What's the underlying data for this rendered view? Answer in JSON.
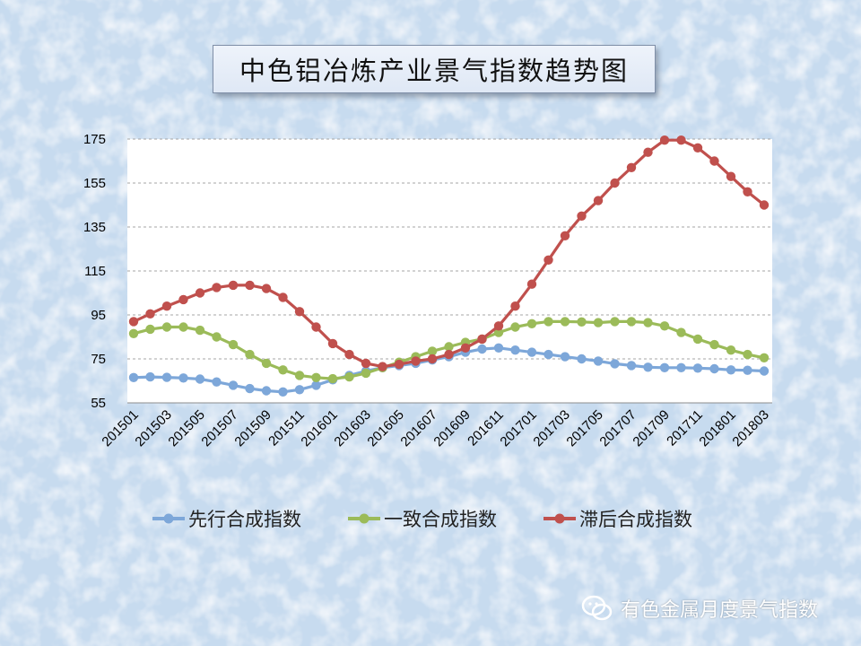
{
  "header": {
    "title": "中色铝冶炼产业景气指数趋势图"
  },
  "watermark": {
    "text": "有色金属月度景气指数",
    "icon": "wechat-icon"
  },
  "colors": {
    "leading": "#7da7d9",
    "coincident": "#9bbb59",
    "lagging": "#c0504d",
    "grid": "#a6a6a6"
  },
  "chart_data": {
    "type": "line",
    "title": "中色铝冶炼产业景气指数趋势图",
    "xlabel": "",
    "ylabel": "",
    "ylim": [
      55,
      175
    ],
    "yticks": [
      55,
      75,
      95,
      115,
      135,
      155,
      175
    ],
    "grid": "horizontal-dashed",
    "legend_position": "bottom",
    "x": [
      "201501",
      "201502",
      "201503",
      "201504",
      "201505",
      "201506",
      "201507",
      "201508",
      "201509",
      "201510",
      "201511",
      "201512",
      "201601",
      "201602",
      "201603",
      "201604",
      "201605",
      "201606",
      "201607",
      "201608",
      "201609",
      "201610",
      "201611",
      "201612",
      "201701",
      "201702",
      "201703",
      "201704",
      "201705",
      "201706",
      "201707",
      "201708",
      "201709",
      "201710",
      "201711",
      "201712",
      "201801",
      "201802",
      "201803"
    ],
    "xtick_labels": [
      "201501",
      "201503",
      "201505",
      "201507",
      "201509",
      "201511",
      "201601",
      "201603",
      "201605",
      "201607",
      "201609",
      "201611",
      "201701",
      "201703",
      "201705",
      "201707",
      "201709",
      "201711",
      "201801",
      "201803"
    ],
    "series": [
      {
        "name": "先行合成指数",
        "color": "#7da7d9",
        "values": [
          66.5,
          66.8,
          66.6,
          66.3,
          65.8,
          64.5,
          63,
          61.5,
          60.5,
          60,
          61,
          63,
          65.5,
          67.5,
          69.5,
          71,
          72,
          73,
          74.5,
          76,
          78,
          79.5,
          80,
          79,
          78,
          77,
          76,
          75,
          74,
          72.8,
          72,
          71.2,
          71,
          71,
          70.8,
          70.5,
          70,
          69.8,
          69.5
        ]
      },
      {
        "name": "一致合成指数",
        "color": "#9bbb59",
        "values": [
          86.5,
          88.5,
          89.5,
          89.5,
          88,
          85,
          81.5,
          77,
          73,
          70,
          67.5,
          66.5,
          66,
          66.8,
          68.5,
          71,
          73.5,
          76,
          78.5,
          80.5,
          82.5,
          84,
          87,
          89.5,
          91,
          92,
          92,
          91.8,
          91.5,
          92,
          92,
          91.5,
          90,
          87,
          84,
          81.5,
          79,
          77,
          75.5
        ]
      },
      {
        "name": "滞后合成指数",
        "color": "#c0504d",
        "values": [
          92,
          95.5,
          99,
          102,
          105,
          107.5,
          108.5,
          108.5,
          107,
          103,
          96.5,
          89.5,
          82,
          77,
          73,
          71.5,
          72.5,
          74,
          75,
          77,
          80,
          84,
          90,
          99,
          109,
          120,
          131,
          140,
          147,
          155,
          162,
          169,
          174.5,
          174.5,
          171,
          165,
          158,
          151,
          145
        ]
      }
    ]
  }
}
